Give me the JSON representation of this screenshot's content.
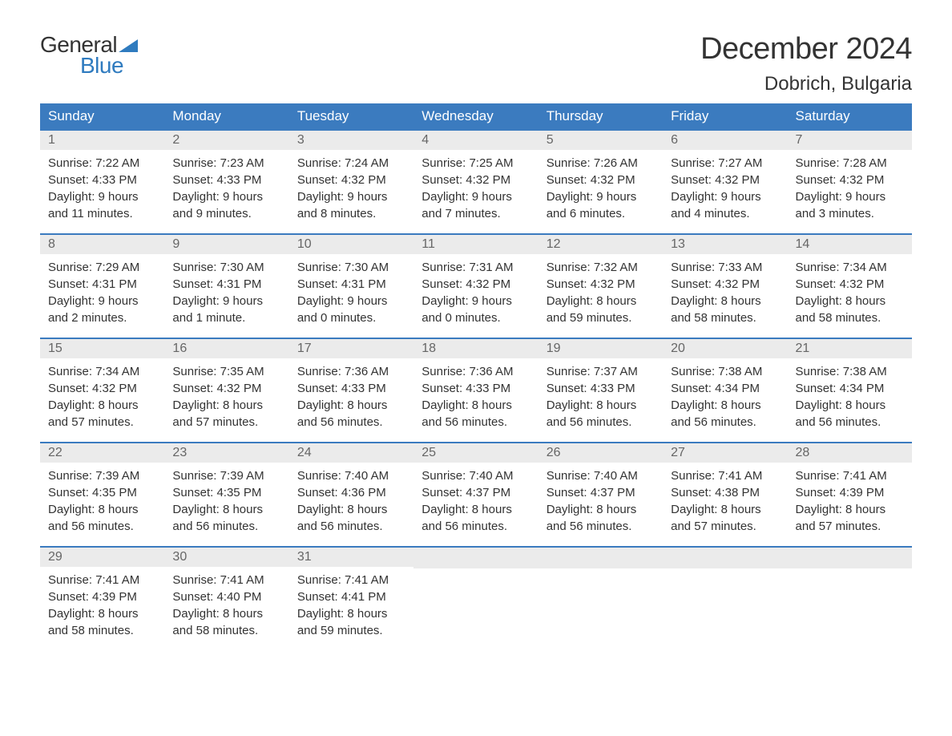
{
  "logo": {
    "text_general": "General",
    "text_blue": "Blue",
    "flag_color": "#2f7bbf"
  },
  "title": "December 2024",
  "location": "Dobrich, Bulgaria",
  "colors": {
    "header_bg": "#3b7bbf",
    "header_text": "#ffffff",
    "daynum_bg": "#ebebeb",
    "daynum_text": "#666666",
    "body_text": "#333333",
    "row_border": "#3b7bbf"
  },
  "weekdays": [
    "Sunday",
    "Monday",
    "Tuesday",
    "Wednesday",
    "Thursday",
    "Friday",
    "Saturday"
  ],
  "days": [
    {
      "num": "1",
      "sunrise": "7:22 AM",
      "sunset": "4:33 PM",
      "daylight": "9 hours and 11 minutes."
    },
    {
      "num": "2",
      "sunrise": "7:23 AM",
      "sunset": "4:33 PM",
      "daylight": "9 hours and 9 minutes."
    },
    {
      "num": "3",
      "sunrise": "7:24 AM",
      "sunset": "4:32 PM",
      "daylight": "9 hours and 8 minutes."
    },
    {
      "num": "4",
      "sunrise": "7:25 AM",
      "sunset": "4:32 PM",
      "daylight": "9 hours and 7 minutes."
    },
    {
      "num": "5",
      "sunrise": "7:26 AM",
      "sunset": "4:32 PM",
      "daylight": "9 hours and 6 minutes."
    },
    {
      "num": "6",
      "sunrise": "7:27 AM",
      "sunset": "4:32 PM",
      "daylight": "9 hours and 4 minutes."
    },
    {
      "num": "7",
      "sunrise": "7:28 AM",
      "sunset": "4:32 PM",
      "daylight": "9 hours and 3 minutes."
    },
    {
      "num": "8",
      "sunrise": "7:29 AM",
      "sunset": "4:31 PM",
      "daylight": "9 hours and 2 minutes."
    },
    {
      "num": "9",
      "sunrise": "7:30 AM",
      "sunset": "4:31 PM",
      "daylight": "9 hours and 1 minute."
    },
    {
      "num": "10",
      "sunrise": "7:30 AM",
      "sunset": "4:31 PM",
      "daylight": "9 hours and 0 minutes."
    },
    {
      "num": "11",
      "sunrise": "7:31 AM",
      "sunset": "4:32 PM",
      "daylight": "9 hours and 0 minutes."
    },
    {
      "num": "12",
      "sunrise": "7:32 AM",
      "sunset": "4:32 PM",
      "daylight": "8 hours and 59 minutes."
    },
    {
      "num": "13",
      "sunrise": "7:33 AM",
      "sunset": "4:32 PM",
      "daylight": "8 hours and 58 minutes."
    },
    {
      "num": "14",
      "sunrise": "7:34 AM",
      "sunset": "4:32 PM",
      "daylight": "8 hours and 58 minutes."
    },
    {
      "num": "15",
      "sunrise": "7:34 AM",
      "sunset": "4:32 PM",
      "daylight": "8 hours and 57 minutes."
    },
    {
      "num": "16",
      "sunrise": "7:35 AM",
      "sunset": "4:32 PM",
      "daylight": "8 hours and 57 minutes."
    },
    {
      "num": "17",
      "sunrise": "7:36 AM",
      "sunset": "4:33 PM",
      "daylight": "8 hours and 56 minutes."
    },
    {
      "num": "18",
      "sunrise": "7:36 AM",
      "sunset": "4:33 PM",
      "daylight": "8 hours and 56 minutes."
    },
    {
      "num": "19",
      "sunrise": "7:37 AM",
      "sunset": "4:33 PM",
      "daylight": "8 hours and 56 minutes."
    },
    {
      "num": "20",
      "sunrise": "7:38 AM",
      "sunset": "4:34 PM",
      "daylight": "8 hours and 56 minutes."
    },
    {
      "num": "21",
      "sunrise": "7:38 AM",
      "sunset": "4:34 PM",
      "daylight": "8 hours and 56 minutes."
    },
    {
      "num": "22",
      "sunrise": "7:39 AM",
      "sunset": "4:35 PM",
      "daylight": "8 hours and 56 minutes."
    },
    {
      "num": "23",
      "sunrise": "7:39 AM",
      "sunset": "4:35 PM",
      "daylight": "8 hours and 56 minutes."
    },
    {
      "num": "24",
      "sunrise": "7:40 AM",
      "sunset": "4:36 PM",
      "daylight": "8 hours and 56 minutes."
    },
    {
      "num": "25",
      "sunrise": "7:40 AM",
      "sunset": "4:37 PM",
      "daylight": "8 hours and 56 minutes."
    },
    {
      "num": "26",
      "sunrise": "7:40 AM",
      "sunset": "4:37 PM",
      "daylight": "8 hours and 56 minutes."
    },
    {
      "num": "27",
      "sunrise": "7:41 AM",
      "sunset": "4:38 PM",
      "daylight": "8 hours and 57 minutes."
    },
    {
      "num": "28",
      "sunrise": "7:41 AM",
      "sunset": "4:39 PM",
      "daylight": "8 hours and 57 minutes."
    },
    {
      "num": "29",
      "sunrise": "7:41 AM",
      "sunset": "4:39 PM",
      "daylight": "8 hours and 58 minutes."
    },
    {
      "num": "30",
      "sunrise": "7:41 AM",
      "sunset": "4:40 PM",
      "daylight": "8 hours and 58 minutes."
    },
    {
      "num": "31",
      "sunrise": "7:41 AM",
      "sunset": "4:41 PM",
      "daylight": "8 hours and 59 minutes."
    }
  ],
  "labels": {
    "sunrise_prefix": "Sunrise: ",
    "sunset_prefix": "Sunset: ",
    "daylight_prefix": "Daylight: "
  },
  "layout": {
    "columns": 7,
    "start_weekday_index": 0,
    "total_cells": 35
  }
}
